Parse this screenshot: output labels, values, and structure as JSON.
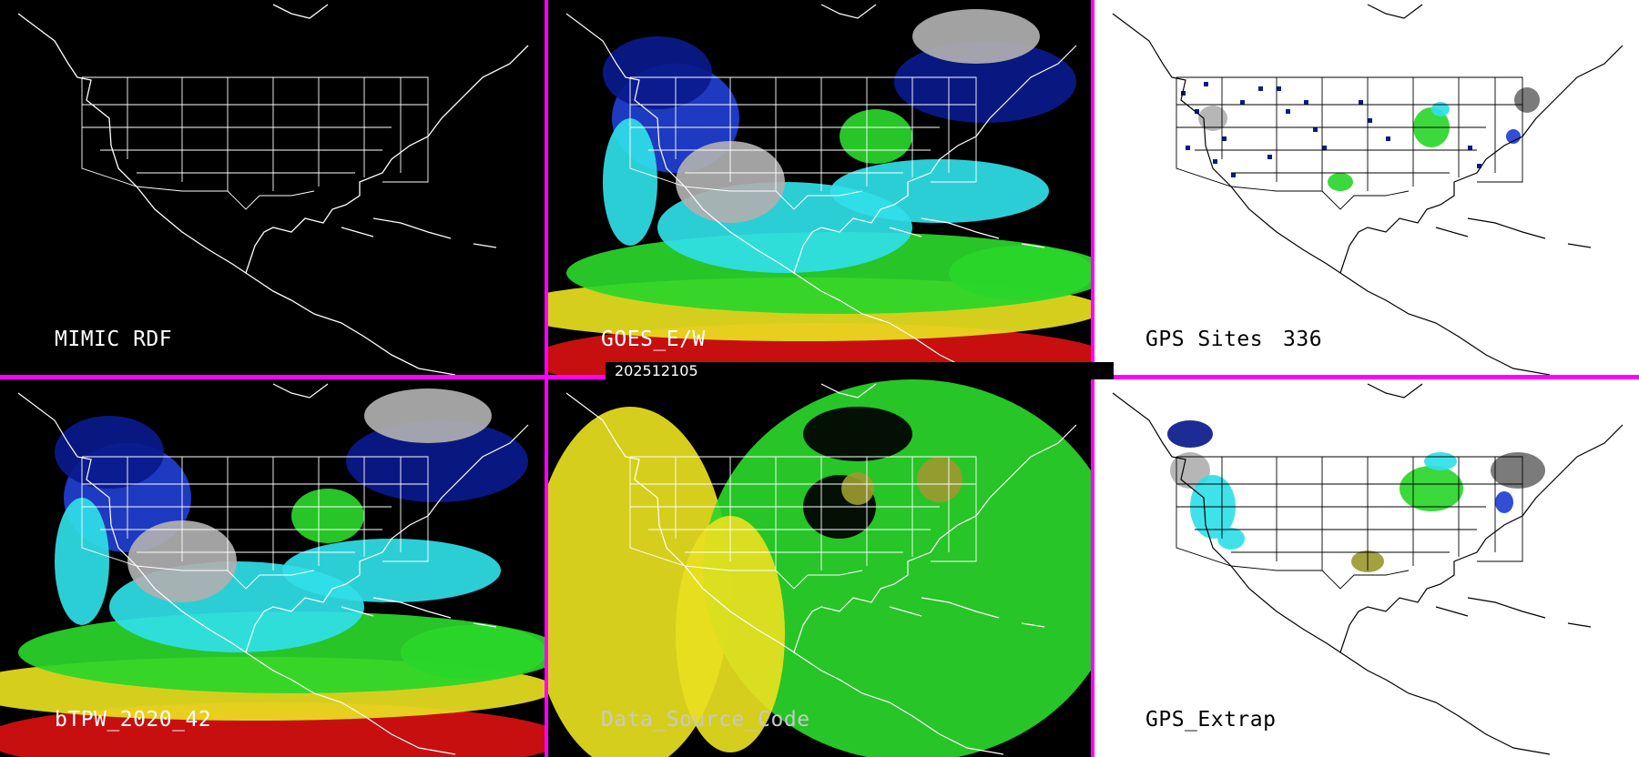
{
  "panels": {
    "mimic_rdf": {
      "label": "MIMIC RDF"
    },
    "goes": {
      "label": "GOES_E/W"
    },
    "gps_sites": {
      "label": "GPS Sites",
      "count": "336"
    },
    "btpw": {
      "label": "bTPW_2020_42"
    },
    "data_source": {
      "label": "Data_Source_Code"
    },
    "gps_extrap": {
      "label": "GPS_Extrap"
    }
  },
  "timestamp": "202512105",
  "colors": {
    "divider": "#ff00ff",
    "map_outline_dark": "#ffffff",
    "map_outline_light": "#000000",
    "panel_dark_bg": "#000000",
    "panel_light_bg": "#ffffff"
  },
  "palette": {
    "navy": "#0a1a8c",
    "blue": "#1f3fd0",
    "cyan": "#30e0e8",
    "green": "#2ad62a",
    "olive": "#9a9a30",
    "yellow": "#e8e020",
    "red": "#d81010",
    "gray": "#b0b0b0",
    "darkgray": "#707070"
  }
}
